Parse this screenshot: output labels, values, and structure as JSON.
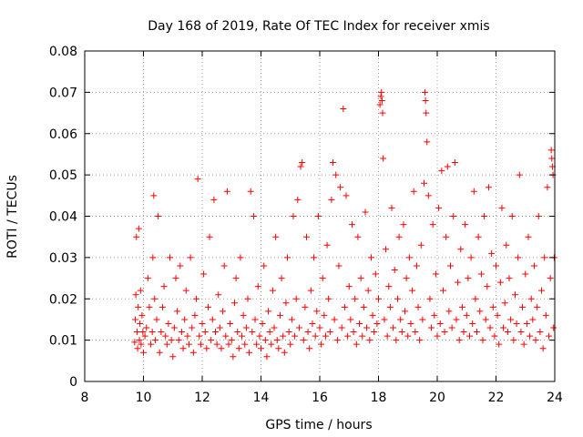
{
  "chart_data": {
    "type": "scatter",
    "title": "Day 168 of 2019, Rate Of TEC Index for receiver xmis",
    "xlabel": "GPS time / hours",
    "ylabel": "ROTI / TECUs",
    "xlim": [
      8,
      24
    ],
    "ylim": [
      0,
      0.08
    ],
    "x_ticks": [
      8,
      10,
      12,
      14,
      16,
      18,
      20,
      22,
      24
    ],
    "x_tick_labels": [
      "8",
      "10",
      "12",
      "14",
      "16",
      "18",
      "20",
      "22",
      "24"
    ],
    "y_ticks": [
      0,
      0.01,
      0.02,
      0.03,
      0.04,
      0.05,
      0.06,
      0.07,
      0.08
    ],
    "y_tick_labels": [
      "0",
      "0.01",
      "0.02",
      "0.03",
      "0.04",
      "0.05",
      "0.06",
      "0.07",
      "0.08"
    ],
    "grid": true,
    "marker": "+",
    "colors": {
      "series": "#ff0000",
      "grid": "#a0a0a0",
      "axis": "#000000"
    },
    "series": [
      {
        "name": "ROTI",
        "points": [
          [
            9.7,
            0.0095
          ],
          [
            9.72,
            0.015
          ],
          [
            9.74,
            0.021
          ],
          [
            9.76,
            0.035
          ],
          [
            9.78,
            0.012
          ],
          [
            9.8,
            0.008
          ],
          [
            9.82,
            0.018
          ],
          [
            9.84,
            0.037
          ],
          [
            9.86,
            0.01
          ],
          [
            9.88,
            0.014
          ],
          [
            9.9,
            0.022
          ],
          [
            9.92,
            0.009
          ],
          [
            9.95,
            0.016
          ],
          [
            9.98,
            0.012
          ],
          [
            10.0,
            0.007
          ],
          [
            10.05,
            0.011
          ],
          [
            10.1,
            0.013
          ],
          [
            10.15,
            0.025
          ],
          [
            10.2,
            0.018
          ],
          [
            10.25,
            0.009
          ],
          [
            10.3,
            0.012
          ],
          [
            10.32,
            0.03
          ],
          [
            10.35,
            0.045
          ],
          [
            10.38,
            0.02
          ],
          [
            10.4,
            0.01
          ],
          [
            10.45,
            0.015
          ],
          [
            10.5,
            0.04
          ],
          [
            10.55,
            0.007
          ],
          [
            10.6,
            0.012
          ],
          [
            10.65,
            0.018
          ],
          [
            10.7,
            0.023
          ],
          [
            10.75,
            0.011
          ],
          [
            10.8,
            0.009
          ],
          [
            10.85,
            0.014
          ],
          [
            10.9,
            0.03
          ],
          [
            10.95,
            0.01
          ],
          [
            11.0,
            0.006
          ],
          [
            11.05,
            0.013
          ],
          [
            11.1,
            0.025
          ],
          [
            11.15,
            0.017
          ],
          [
            11.2,
            0.01
          ],
          [
            11.25,
            0.028
          ],
          [
            11.3,
            0.012
          ],
          [
            11.35,
            0.008
          ],
          [
            11.4,
            0.015
          ],
          [
            11.45,
            0.022
          ],
          [
            11.5,
            0.011
          ],
          [
            11.55,
            0.009
          ],
          [
            11.6,
            0.03
          ],
          [
            11.65,
            0.013
          ],
          [
            11.7,
            0.007
          ],
          [
            11.75,
            0.016
          ],
          [
            11.8,
            0.02
          ],
          [
            11.85,
            0.049
          ],
          [
            11.9,
            0.011
          ],
          [
            11.95,
            0.009
          ],
          [
            12.0,
            0.014
          ],
          [
            12.05,
            0.026
          ],
          [
            12.1,
            0.012
          ],
          [
            12.15,
            0.008
          ],
          [
            12.2,
            0.018
          ],
          [
            12.25,
            0.035
          ],
          [
            12.3,
            0.01
          ],
          [
            12.35,
            0.015
          ],
          [
            12.4,
            0.044
          ],
          [
            12.45,
            0.012
          ],
          [
            12.5,
            0.009
          ],
          [
            12.55,
            0.021
          ],
          [
            12.6,
            0.013
          ],
          [
            12.65,
            0.008
          ],
          [
            12.7,
            0.017
          ],
          [
            12.75,
            0.028
          ],
          [
            12.8,
            0.011
          ],
          [
            12.85,
            0.046
          ],
          [
            12.9,
            0.009
          ],
          [
            12.95,
            0.014
          ],
          [
            13.0,
            0.01
          ],
          [
            13.05,
            0.006
          ],
          [
            13.1,
            0.019
          ],
          [
            13.15,
            0.025
          ],
          [
            13.2,
            0.012
          ],
          [
            13.25,
            0.008
          ],
          [
            13.3,
            0.03
          ],
          [
            13.35,
            0.011
          ],
          [
            13.4,
            0.016
          ],
          [
            13.45,
            0.009
          ],
          [
            13.5,
            0.013
          ],
          [
            13.55,
            0.02
          ],
          [
            13.6,
            0.007
          ],
          [
            13.65,
            0.046
          ],
          [
            13.7,
            0.012
          ],
          [
            13.75,
            0.04
          ],
          [
            13.8,
            0.015
          ],
          [
            13.85,
            0.009
          ],
          [
            13.9,
            0.023
          ],
          [
            13.95,
            0.011
          ],
          [
            14.0,
            0.008
          ],
          [
            14.05,
            0.014
          ],
          [
            14.1,
            0.028
          ],
          [
            14.15,
            0.01
          ],
          [
            14.2,
            0.006
          ],
          [
            14.25,
            0.017
          ],
          [
            14.3,
            0.012
          ],
          [
            14.35,
            0.009
          ],
          [
            14.4,
            0.022
          ],
          [
            14.45,
            0.013
          ],
          [
            14.5,
            0.035
          ],
          [
            14.55,
            0.01
          ],
          [
            14.6,
            0.008
          ],
          [
            14.65,
            0.016
          ],
          [
            14.7,
            0.025
          ],
          [
            14.75,
            0.011
          ],
          [
            14.8,
            0.007
          ],
          [
            14.85,
            0.019
          ],
          [
            14.9,
            0.03
          ],
          [
            14.95,
            0.012
          ],
          [
            15.0,
            0.009
          ],
          [
            15.05,
            0.015
          ],
          [
            15.1,
            0.04
          ],
          [
            15.15,
            0.011
          ],
          [
            15.2,
            0.02
          ],
          [
            15.25,
            0.044
          ],
          [
            15.3,
            0.013
          ],
          [
            15.35,
            0.052
          ],
          [
            15.4,
            0.053
          ],
          [
            15.45,
            0.01
          ],
          [
            15.5,
            0.018
          ],
          [
            15.55,
            0.035
          ],
          [
            15.6,
            0.012
          ],
          [
            15.65,
            0.008
          ],
          [
            15.7,
            0.022
          ],
          [
            15.75,
            0.014
          ],
          [
            15.8,
            0.03
          ],
          [
            15.85,
            0.011
          ],
          [
            15.9,
            0.017
          ],
          [
            15.95,
            0.04
          ],
          [
            16.0,
            0.013
          ],
          [
            16.05,
            0.009
          ],
          [
            16.1,
            0.025
          ],
          [
            16.15,
            0.016
          ],
          [
            16.2,
            0.011
          ],
          [
            16.25,
            0.033
          ],
          [
            16.3,
            0.02
          ],
          [
            16.35,
            0.012
          ],
          [
            16.4,
            0.044
          ],
          [
            16.45,
            0.053
          ],
          [
            16.5,
            0.015
          ],
          [
            16.55,
            0.05
          ],
          [
            16.6,
            0.01
          ],
          [
            16.65,
            0.028
          ],
          [
            16.7,
            0.047
          ],
          [
            16.75,
            0.013
          ],
          [
            16.8,
            0.066
          ],
          [
            16.85,
            0.018
          ],
          [
            16.9,
            0.045
          ],
          [
            16.95,
            0.011
          ],
          [
            17.0,
            0.023
          ],
          [
            17.05,
            0.015
          ],
          [
            17.1,
            0.038
          ],
          [
            17.15,
            0.012
          ],
          [
            17.2,
            0.02
          ],
          [
            17.25,
            0.009
          ],
          [
            17.3,
            0.035
          ],
          [
            17.35,
            0.014
          ],
          [
            17.4,
            0.025
          ],
          [
            17.45,
            0.011
          ],
          [
            17.5,
            0.018
          ],
          [
            17.55,
            0.041
          ],
          [
            17.6,
            0.013
          ],
          [
            17.65,
            0.022
          ],
          [
            17.7,
            0.01
          ],
          [
            17.75,
            0.03
          ],
          [
            17.8,
            0.016
          ],
          [
            17.85,
            0.012
          ],
          [
            17.9,
            0.026
          ],
          [
            17.95,
            0.014
          ],
          [
            18.0,
            0.02
          ],
          [
            18.05,
            0.067
          ],
          [
            18.08,
            0.069
          ],
          [
            18.1,
            0.07
          ],
          [
            18.12,
            0.068
          ],
          [
            18.14,
            0.065
          ],
          [
            18.16,
            0.054
          ],
          [
            18.2,
            0.015
          ],
          [
            18.25,
            0.032
          ],
          [
            18.3,
            0.011
          ],
          [
            18.35,
            0.023
          ],
          [
            18.4,
            0.018
          ],
          [
            18.45,
            0.042
          ],
          [
            18.5,
            0.013
          ],
          [
            18.55,
            0.027
          ],
          [
            18.6,
            0.01
          ],
          [
            18.65,
            0.02
          ],
          [
            18.7,
            0.035
          ],
          [
            18.75,
            0.015
          ],
          [
            18.8,
            0.012
          ],
          [
            18.85,
            0.038
          ],
          [
            18.9,
            0.017
          ],
          [
            18.95,
            0.025
          ],
          [
            19.0,
            0.011
          ],
          [
            19.05,
            0.03
          ],
          [
            19.1,
            0.014
          ],
          [
            19.15,
            0.022
          ],
          [
            19.2,
            0.046
          ],
          [
            19.25,
            0.012
          ],
          [
            19.3,
            0.028
          ],
          [
            19.35,
            0.018
          ],
          [
            19.4,
            0.01
          ],
          [
            19.45,
            0.033
          ],
          [
            19.5,
            0.015
          ],
          [
            19.55,
            0.048
          ],
          [
            19.58,
            0.07
          ],
          [
            19.6,
            0.068
          ],
          [
            19.62,
            0.065
          ],
          [
            19.65,
            0.058
          ],
          [
            19.7,
            0.045
          ],
          [
            19.75,
            0.02
          ],
          [
            19.8,
            0.013
          ],
          [
            19.85,
            0.038
          ],
          [
            19.9,
            0.016
          ],
          [
            19.95,
            0.026
          ],
          [
            20.0,
            0.011
          ],
          [
            20.05,
            0.042
          ],
          [
            20.1,
            0.014
          ],
          [
            20.15,
            0.051
          ],
          [
            20.2,
            0.022
          ],
          [
            20.25,
            0.012
          ],
          [
            20.3,
            0.035
          ],
          [
            20.35,
            0.052
          ],
          [
            20.4,
            0.017
          ],
          [
            20.45,
            0.028
          ],
          [
            20.5,
            0.013
          ],
          [
            20.55,
            0.04
          ],
          [
            20.6,
            0.053
          ],
          [
            20.65,
            0.015
          ],
          [
            20.7,
            0.024
          ],
          [
            20.75,
            0.01
          ],
          [
            20.8,
            0.032
          ],
          [
            20.85,
            0.018
          ],
          [
            20.9,
            0.012
          ],
          [
            20.95,
            0.038
          ],
          [
            21.0,
            0.016
          ],
          [
            21.05,
            0.025
          ],
          [
            21.1,
            0.011
          ],
          [
            21.15,
            0.03
          ],
          [
            21.2,
            0.014
          ],
          [
            21.25,
            0.046
          ],
          [
            21.3,
            0.02
          ],
          [
            21.35,
            0.012
          ],
          [
            21.4,
            0.035
          ],
          [
            21.45,
            0.017
          ],
          [
            21.5,
            0.026
          ],
          [
            21.55,
            0.01
          ],
          [
            21.6,
            0.04
          ],
          [
            21.65,
            0.015
          ],
          [
            21.7,
            0.023
          ],
          [
            21.75,
            0.047
          ],
          [
            21.8,
            0.013
          ],
          [
            21.85,
            0.031
          ],
          [
            21.9,
            0.018
          ],
          [
            21.95,
            0.011
          ],
          [
            22.0,
            0.028
          ],
          [
            22.05,
            0.016
          ],
          [
            22.1,
            0.009
          ],
          [
            22.15,
            0.024
          ],
          [
            22.2,
            0.042
          ],
          [
            22.25,
            0.013
          ],
          [
            22.3,
            0.019
          ],
          [
            22.35,
            0.033
          ],
          [
            22.4,
            0.012
          ],
          [
            22.45,
            0.025
          ],
          [
            22.5,
            0.015
          ],
          [
            22.55,
            0.04
          ],
          [
            22.6,
            0.01
          ],
          [
            22.65,
            0.021
          ],
          [
            22.7,
            0.014
          ],
          [
            22.75,
            0.03
          ],
          [
            22.8,
            0.05
          ],
          [
            22.85,
            0.012
          ],
          [
            22.9,
            0.018
          ],
          [
            22.95,
            0.009
          ],
          [
            23.0,
            0.026
          ],
          [
            23.05,
            0.014
          ],
          [
            23.1,
            0.035
          ],
          [
            23.15,
            0.011
          ],
          [
            23.2,
            0.02
          ],
          [
            23.25,
            0.015
          ],
          [
            23.3,
            0.028
          ],
          [
            23.35,
            0.01
          ],
          [
            23.4,
            0.018
          ],
          [
            23.45,
            0.04
          ],
          [
            23.5,
            0.012
          ],
          [
            23.55,
            0.022
          ],
          [
            23.6,
            0.008
          ],
          [
            23.65,
            0.03
          ],
          [
            23.7,
            0.016
          ],
          [
            23.75,
            0.047
          ],
          [
            23.8,
            0.011
          ],
          [
            23.85,
            0.025
          ],
          [
            23.88,
            0.056
          ],
          [
            23.9,
            0.054
          ],
          [
            23.92,
            0.052
          ],
          [
            23.94,
            0.05
          ],
          [
            23.96,
            0.013
          ],
          [
            23.98,
            0.03
          ]
        ]
      }
    ]
  }
}
